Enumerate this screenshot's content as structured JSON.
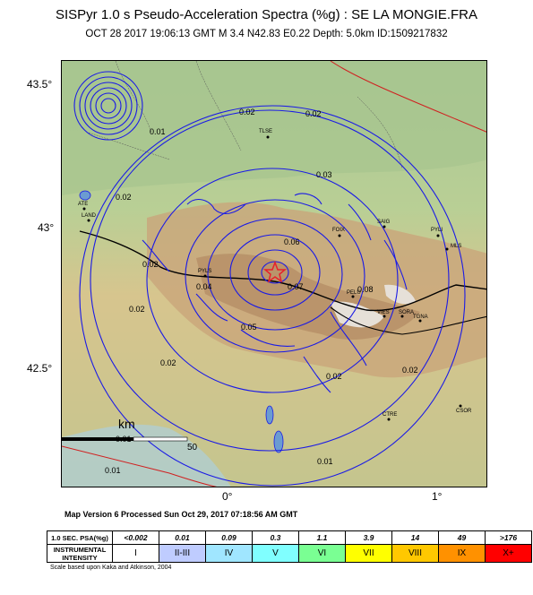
{
  "title": "SISPyr 1.0 s Pseudo-Acceleration Spectra (%g) : SE LA MONGIE.FRA",
  "subtitle": "OCT 28 2017 19:06:13  GMT    M 3.4    N42.83 E0.22    Depth: 5.0km    ID:1509217832",
  "lat_labels": [
    "43.5°",
    "43°",
    "42.5°"
  ],
  "lon_labels": [
    "0°",
    "1°"
  ],
  "scale_bar": {
    "unit": "km",
    "tick": "50"
  },
  "contour_labels": [
    "0.01",
    "0.02",
    "0.03",
    "0.04",
    "0.05",
    "0.06",
    "0.07",
    "0.08"
  ],
  "cities": [
    "TLSE",
    "FOIX",
    "PYLI",
    "MLS",
    "SAIG",
    "LAND",
    "PELU",
    "VIES",
    "TGNA",
    "SORA",
    "CTRE",
    "CSOR",
    "ATE",
    "PYLS"
  ],
  "epicenter_color": "#e8202a",
  "contour_color": "#1a1ae6",
  "processed": "Map Version 6 Processed Sun Oct 29, 2017 07:18:56 AM GMT",
  "legend": {
    "psa_header": "1.0 SEC. PSA(%g)",
    "psa_values": [
      "<0.002",
      "0.01",
      "0.09",
      "0.3",
      "1.1",
      "3.9",
      "14",
      "49",
      ">176"
    ],
    "intensity_header": "INSTRUMENTAL INTENSITY",
    "intensities": [
      "I",
      "II-III",
      "IV",
      "V",
      "VI",
      "VII",
      "VIII",
      "IX",
      "X+"
    ],
    "colors": [
      "#ffffff",
      "#bfccff",
      "#a0e6ff",
      "#80ffff",
      "#7aff93",
      "#ffff00",
      "#ffc800",
      "#ff9100",
      "#ff0000"
    ],
    "scale_note": "Scale based upon Kaka and Atkinson, 2004"
  }
}
